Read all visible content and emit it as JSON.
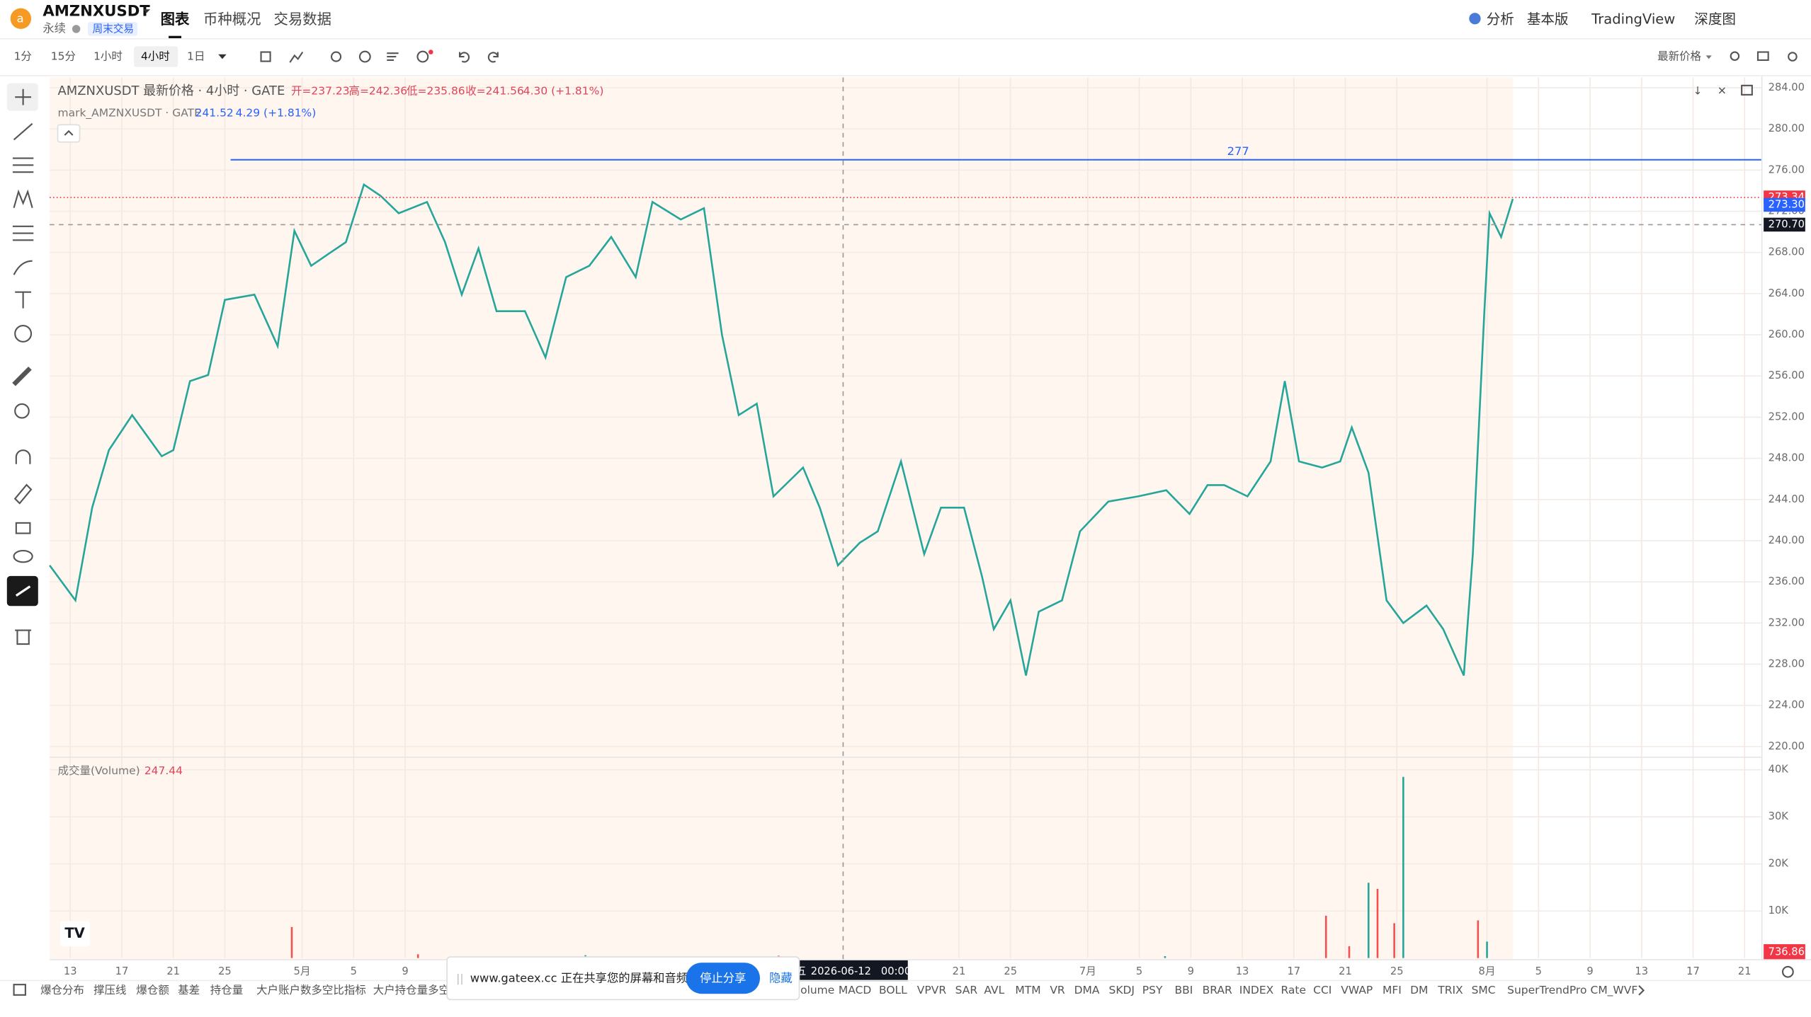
{
  "header": {
    "symbol": "AMZNXUSDT",
    "kind": "永续",
    "badge": "周末交易",
    "tabs": [
      "图表",
      "币种概况",
      "交易数据"
    ],
    "right": [
      "分析",
      "基本版",
      "TradingView",
      "深度图"
    ]
  },
  "toolbar": {
    "intervals": [
      "1分",
      "15分",
      "1小时",
      "4小时",
      "1日"
    ],
    "price_mode": "最新价格"
  },
  "legend": {
    "title": "AMZNXUSDT 最新价格 · 4小时 · GATE",
    "open": "开=237.23",
    "high": "高=242.36",
    "low": "低=235.86",
    "close": "收=241.56",
    "change": "4.30 (+1.81%)",
    "mark_title": "mark_AMZNXUSDT · GATE",
    "mark_price": "241.52",
    "mark_change": "4.29 (+1.81%)"
  },
  "chart_data": [
    {
      "type": "line",
      "color": "#26a69a",
      "x": [
        -1.6,
        0.4,
        1.7,
        3.0,
        4.8,
        7.1,
        8.0,
        9.3,
        10.7,
        12.0,
        14.3,
        16.1,
        17.4,
        18.7,
        20.1,
        21.4,
        22.8,
        24.1,
        25.5,
        27.7,
        29.1,
        30.4,
        31.7,
        33.1,
        35.3,
        36.9,
        38.5,
        40.3,
        42.0,
        43.9,
        45.2,
        47.4,
        49.2,
        50.6,
        51.9,
        53.3,
        54.6,
        56.9,
        58.2,
        59.6,
        61.3,
        62.7,
        64.5,
        66.3,
        67.6,
        69.4,
        70.8,
        71.7,
        73.0,
        74.2,
        75.2,
        77.0,
        78.4,
        80.6,
        82.9,
        85.1,
        86.9,
        88.3,
        89.6,
        91.4,
        93.2,
        94.3,
        95.4,
        97.2,
        98.6,
        99.5,
        100.8,
        102.2,
        103.5,
        105.3,
        106.6,
        108.2,
        108.9,
        109.8,
        110.2,
        111.1,
        112.0
      ],
      "values": [
        237.6,
        234.2,
        243.2,
        248.8,
        252.2,
        248.2,
        248.8,
        255.5,
        256.1,
        263.4,
        263.9,
        258.9,
        270.1,
        266.7,
        267.9,
        269.0,
        274.6,
        273.5,
        271.8,
        272.9,
        269.0,
        263.9,
        268.4,
        262.3,
        262.3,
        257.8,
        265.6,
        266.7,
        269.5,
        265.6,
        272.9,
        271.2,
        272.3,
        260.0,
        252.2,
        253.3,
        244.3,
        247.1,
        243.2,
        237.6,
        239.8,
        240.9,
        247.7,
        238.7,
        243.2,
        243.2,
        236.5,
        231.4,
        234.2,
        226.9,
        233.1,
        234.2,
        240.9,
        243.8,
        244.3,
        244.9,
        242.6,
        245.4,
        245.4,
        244.3,
        247.7,
        255.5,
        247.7,
        247.1,
        247.7,
        251.0,
        246.6,
        234.2,
        232.0,
        233.7,
        231.4,
        226.9,
        238.7,
        262.3,
        271.8,
        269.5,
        273.2
      ],
      "xlim": [
        -1.6,
        131.3
      ],
      "xticks": [
        {
          "value": 0,
          "label": "13"
        },
        {
          "value": 4,
          "label": "17"
        },
        {
          "value": 8,
          "label": "21"
        },
        {
          "value": 12,
          "label": "25"
        },
        {
          "value": 18,
          "label": "5月"
        },
        {
          "value": 22,
          "label": "5"
        },
        {
          "value": 26,
          "label": "9"
        },
        {
          "value": 69,
          "label": "21"
        },
        {
          "value": 73,
          "label": "25"
        },
        {
          "value": 79,
          "label": "7月"
        },
        {
          "value": 83,
          "label": "5"
        },
        {
          "value": 87,
          "label": "9"
        },
        {
          "value": 91,
          "label": "13"
        },
        {
          "value": 95,
          "label": "17"
        },
        {
          "value": 99,
          "label": "21"
        },
        {
          "value": 103,
          "label": "25"
        },
        {
          "value": 110,
          "label": "8月"
        },
        {
          "value": 114,
          "label": "5"
        },
        {
          "value": 118,
          "label": "9"
        },
        {
          "value": 122,
          "label": "13"
        },
        {
          "value": 126,
          "label": "17"
        },
        {
          "value": 130,
          "label": "21"
        }
      ],
      "ylim": [
        219.3,
        285.0
      ],
      "yticks": [
        {
          "value": 220,
          "label": "220.00"
        },
        {
          "value": 224,
          "label": "224.00"
        },
        {
          "value": 228,
          "label": "228.00"
        },
        {
          "value": 232,
          "label": "232.00"
        },
        {
          "value": 236,
          "label": "236.00"
        },
        {
          "value": 240,
          "label": "240.00"
        },
        {
          "value": 244,
          "label": "244.00"
        },
        {
          "value": 248,
          "label": "248.00"
        },
        {
          "value": 252,
          "label": "252.00"
        },
        {
          "value": 256,
          "label": "256.00"
        },
        {
          "value": 260,
          "label": "260.00"
        },
        {
          "value": 264,
          "label": "264.00"
        },
        {
          "value": 268,
          "label": "268.00"
        },
        {
          "value": 272,
          "label": "272.00"
        },
        {
          "value": 276,
          "label": "276.00"
        },
        {
          "value": 280,
          "label": "280.00"
        },
        {
          "value": 284,
          "label": "284.00"
        }
      ],
      "hline": 277,
      "price_labels": [
        {
          "value": 273.34,
          "label": "273.34",
          "color": "#f23645"
        },
        {
          "value": 273.3,
          "label": "273.30",
          "color": "#2962ff"
        },
        {
          "value": 270.7,
          "label": "270.70",
          "color": "#131722"
        }
      ]
    },
    {
      "type": "bar",
      "title": "成交量(Volume)",
      "last": "247.44",
      "last_label": "736.86",
      "x": [
        17.2,
        27.0,
        40.0,
        55.0,
        85.0,
        97.5,
        99.3,
        100.8,
        101.5,
        102.8,
        103.5,
        109.3,
        110.0
      ],
      "values": [
        6600,
        800,
        600,
        500,
        400,
        9000,
        2500,
        16000,
        14700,
        7400,
        38500,
        8000,
        3500
      ],
      "colors": [
        "#ef5350",
        "#ef5350",
        "#26a69a",
        "#ef5350",
        "#26a69a",
        "#ef5350",
        "#ef5350",
        "#26a69a",
        "#ef5350",
        "#ef5350",
        "#26a69a",
        "#ef5350",
        "#26a69a"
      ],
      "ylim": [
        0,
        41700
      ],
      "yticks": [
        {
          "value": 10000,
          "label": "10K"
        },
        {
          "value": 20000,
          "label": "20K"
        },
        {
          "value": 30000,
          "label": "30K"
        },
        {
          "value": 40000,
          "label": "40K"
        }
      ]
    }
  ],
  "crosshair": {
    "day": "五",
    "time": "2026-06-12   00:00"
  },
  "bottom_bar": {
    "left": [
      "爆仓分布",
      "撑压线",
      "爆仓额",
      "基差",
      "持仓量",
      "大户账户数多空比指标",
      "大户持仓量多空比"
    ],
    "right": [
      "olume",
      "MACD",
      "BOLL",
      "VPVR",
      "SAR",
      "AVL",
      "MTM",
      "VR",
      "DMA",
      "SKDJ",
      "PSY",
      "BBI",
      "BRAR",
      "INDEX",
      "Rate",
      "CCI",
      "VWAP",
      "MFI",
      "DM",
      "TRIX",
      "SMC",
      "SuperTrendPro",
      "CM_WVF"
    ]
  },
  "share_bar": {
    "message": "www.gateex.cc 正在共享您的屏幕和音频。",
    "stop": "停止分享",
    "hide": "隐藏"
  }
}
